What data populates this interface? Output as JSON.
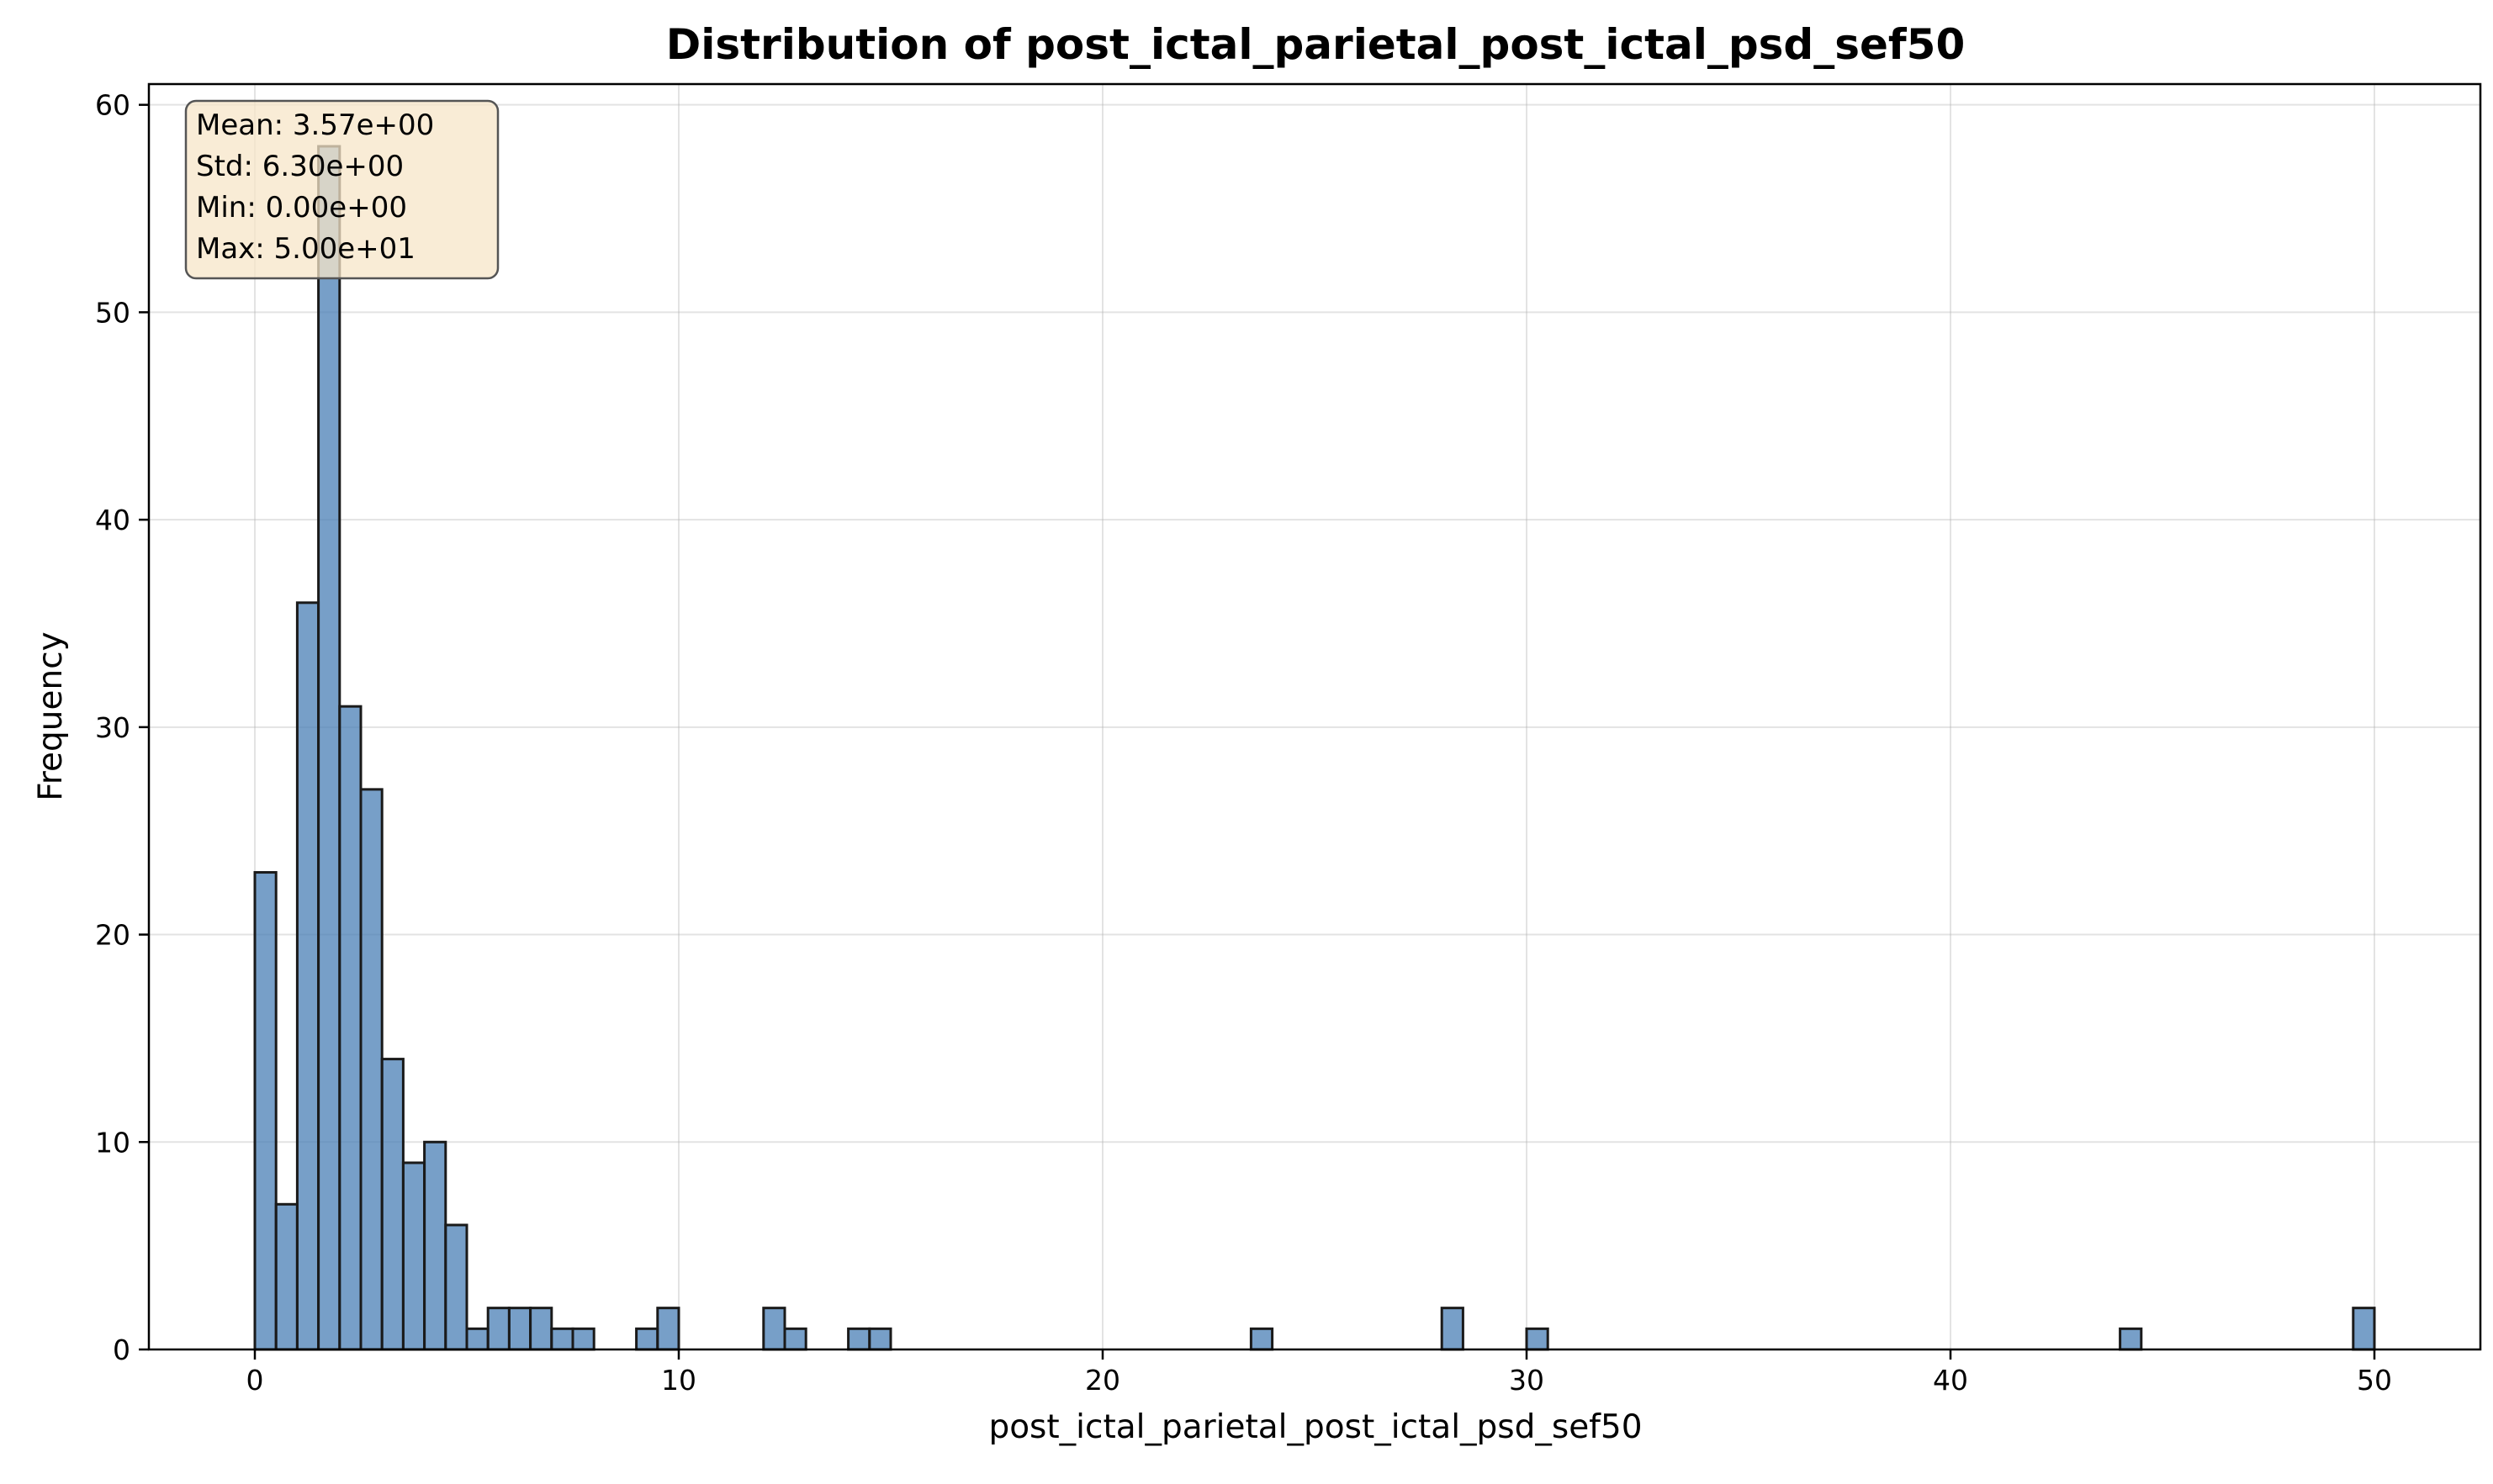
{
  "chart_data": {
    "type": "bar",
    "title": "Distribution of post_ictal_parietal_post_ictal_psd_sef50",
    "xlabel": "post_ictal_parietal_post_ictal_psd_sef50",
    "ylabel": "Frequency",
    "xlim": [
      -2.5,
      52.5
    ],
    "ylim": [
      0,
      61
    ],
    "xticks": [
      0,
      10,
      20,
      30,
      40,
      50
    ],
    "yticks": [
      0,
      10,
      20,
      30,
      40,
      50,
      60
    ],
    "grid": true,
    "bin_start": 0,
    "bin_width": 0.5,
    "values": [
      23,
      7,
      36,
      58,
      31,
      27,
      14,
      9,
      10,
      6,
      1,
      2,
      2,
      2,
      1,
      1,
      0,
      0,
      1,
      2,
      0,
      0,
      0,
      0,
      2,
      1,
      0,
      0,
      1,
      1,
      0,
      0,
      0,
      0,
      0,
      0,
      0,
      0,
      0,
      0,
      0,
      0,
      0,
      0,
      0,
      0,
      0,
      1,
      0,
      0,
      0,
      0,
      0,
      0,
      0,
      0,
      2,
      0,
      0,
      0,
      1,
      0,
      0,
      0,
      0,
      0,
      0,
      0,
      0,
      0,
      0,
      0,
      0,
      0,
      0,
      0,
      0,
      0,
      0,
      0,
      0,
      0,
      0,
      0,
      0,
      0,
      0,
      0,
      1,
      0,
      0,
      0,
      0,
      0,
      0,
      0,
      0,
      0,
      0,
      2
    ],
    "bar_color": "#4a7fb5",
    "edge_color": "#1a1a1a",
    "stats_box": {
      "lines": [
        "Mean: 3.57e+00",
        "Std: 6.30e+00",
        "Min: 0.00e+00",
        "Max: 5.00e+01"
      ],
      "placement": "top-left",
      "background": "#f7e6c8"
    }
  }
}
